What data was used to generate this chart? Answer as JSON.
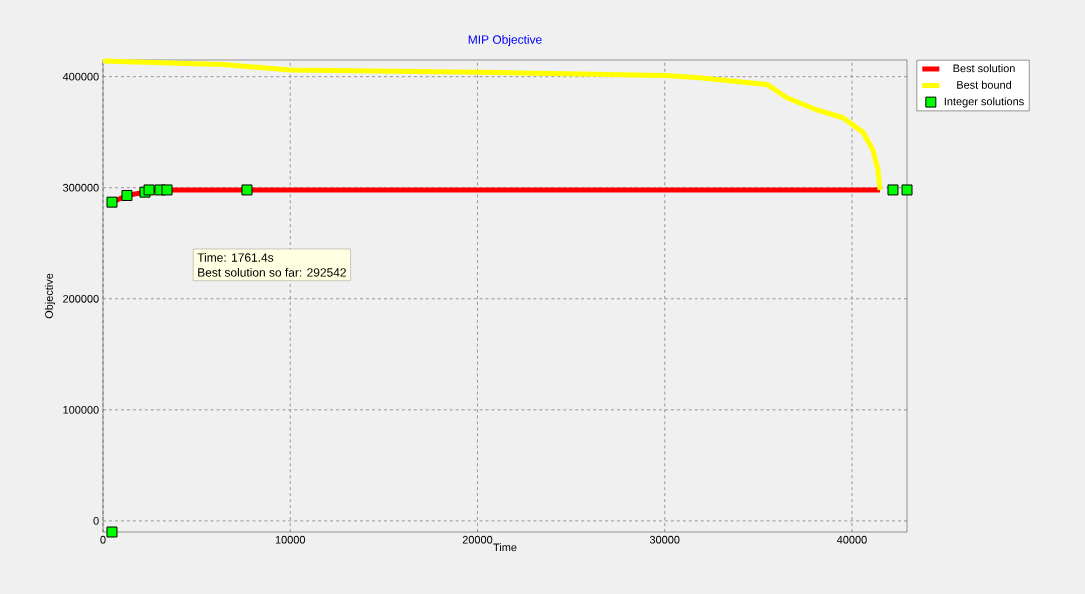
{
  "chart_data": {
    "type": "line",
    "title": "MIP Objective",
    "xlabel": "Time",
    "ylabel": "Objective",
    "xlim": [
      0,
      42940
    ],
    "ylim": [
      -10000,
      415000
    ],
    "xticks": [
      0,
      10000,
      20000,
      30000,
      40000
    ],
    "yticks": [
      0,
      100000,
      200000,
      300000,
      400000
    ],
    "grid": true,
    "legend": "top right",
    "annotations": [
      "Time: 1761.4s",
      "Best solution so far: 292542"
    ],
    "series": [
      {
        "name": "Best solution",
        "color": "#ff0000",
        "marker": "none",
        "x": [
          480,
          1280,
          2240,
          2460,
          41500
        ],
        "values": [
          287000,
          293000,
          296000,
          298000,
          298000
        ]
      },
      {
        "name": "Best bound",
        "color": "#ffff00",
        "marker": "none",
        "x": [
          0,
          6400,
          9990,
          20000,
          30000,
          31880,
          35460,
          36530,
          38130,
          39520,
          40590,
          41120,
          41390,
          41500
        ],
        "values": [
          414000,
          411000,
          406000,
          404000,
          401000,
          399000,
          393000,
          381000,
          370000,
          363000,
          350000,
          334000,
          316000,
          298000
        ]
      },
      {
        "name": "Integer solutions",
        "color": "#00ff00",
        "type": "scatter",
        "marker": "square",
        "x": [
          480,
          480,
          1280,
          2240,
          2460,
          3040,
          3420,
          7690,
          42190,
          42940
        ],
        "values": [
          -10000,
          287000,
          293000,
          296000,
          298000,
          298000,
          298000,
          298000,
          298000,
          298000
        ]
      }
    ]
  }
}
